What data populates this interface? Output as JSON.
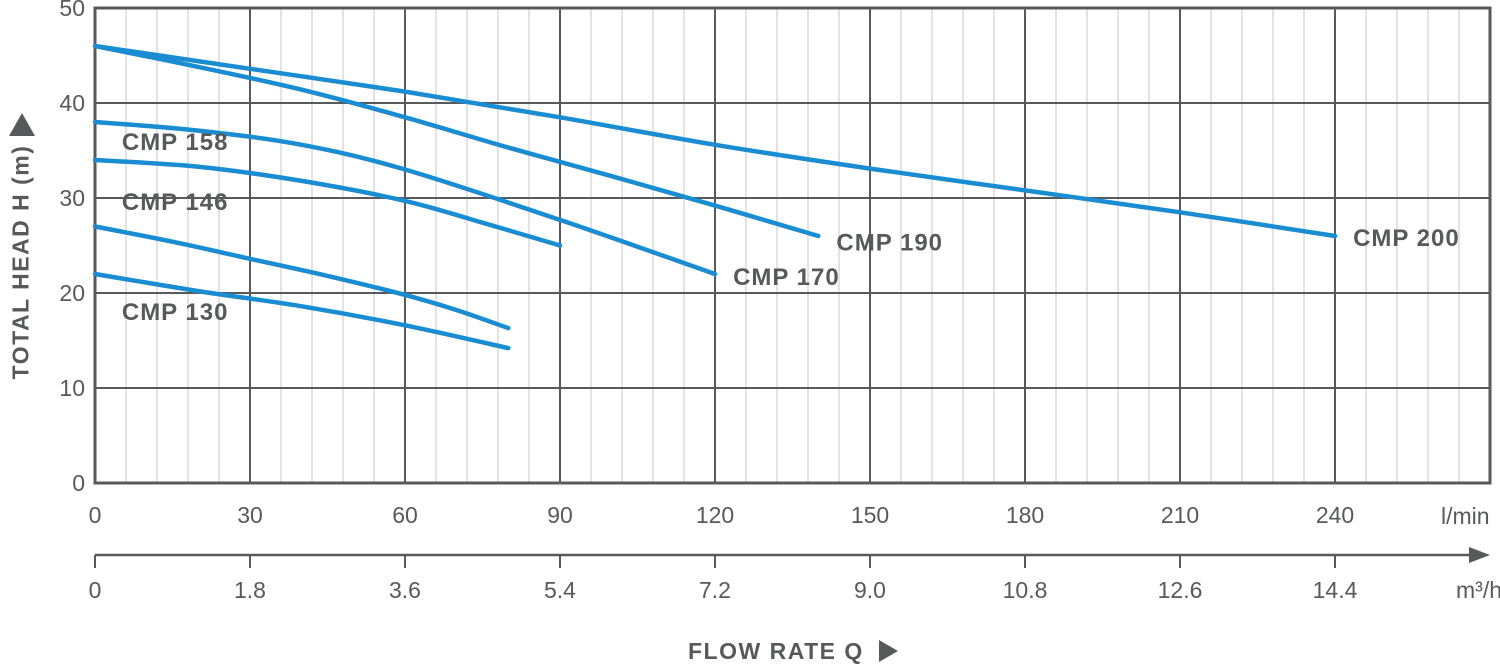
{
  "colors": {
    "curve": "#1a8cd2",
    "grid_major": "#58595b",
    "grid_minor": "#d9dadb",
    "border": "#58595b",
    "text": "#58595b"
  },
  "y_axis": {
    "title": "TOTAL HEAD H (m)",
    "ticks": [
      0,
      10,
      20,
      30,
      40,
      50
    ]
  },
  "x_axis": {
    "title": "FLOW RATE Q",
    "unit_primary": "l/min",
    "unit_secondary": "m³/h",
    "ticks_primary": [
      0,
      30,
      60,
      90,
      120,
      150,
      180,
      210,
      240
    ],
    "ticks_secondary": [
      "0",
      "1.8",
      "3.6",
      "5.4",
      "7.2",
      "9.0",
      "10.8",
      "12.6",
      "14.4"
    ]
  },
  "chart_data": {
    "type": "line",
    "xlabel": "FLOW RATE Q",
    "ylabel": "TOTAL HEAD H (m)",
    "x_unit_primary": "l/min",
    "x_unit_secondary": "m³/h",
    "xlim": [
      0,
      270
    ],
    "ylim": [
      0,
      50
    ],
    "x_major_step": 30,
    "x_minor_step": 6,
    "y_major_step": 10,
    "grid": "on",
    "legend_position": "labels-on-curves",
    "series": [
      {
        "name": "CMP 130",
        "points": [
          [
            0,
            22
          ],
          [
            20,
            20.2
          ],
          [
            40,
            18.6
          ],
          [
            60,
            16.6
          ],
          [
            80,
            14.2
          ]
        ],
        "label_at": {
          "q": 5.2,
          "h": 18.1,
          "anchor": "start"
        }
      },
      {
        "name": "CMP 146",
        "points": [
          [
            0,
            27
          ],
          [
            15,
            25.4
          ],
          [
            30,
            23.6
          ],
          [
            45,
            21.8
          ],
          [
            60,
            19.8
          ],
          [
            70,
            18.2
          ],
          [
            80,
            16.3
          ]
        ],
        "label_at": {
          "q": 5.2,
          "h": 29.7,
          "anchor": "start"
        }
      },
      {
        "name": "CMP 158",
        "points": [
          [
            0,
            34
          ],
          [
            20,
            33.3
          ],
          [
            40,
            31.8
          ],
          [
            60,
            29.7
          ],
          [
            75,
            27.4
          ],
          [
            90,
            25
          ]
        ],
        "label_at": {
          "q": 5.2,
          "h": 36.0,
          "anchor": "start"
        }
      },
      {
        "name": "CMP 170",
        "points": [
          [
            0,
            38
          ],
          [
            20,
            37.1
          ],
          [
            40,
            35.6
          ],
          [
            60,
            33.0
          ],
          [
            90,
            27.7
          ],
          [
            120,
            22
          ]
        ],
        "label_at": {
          "q": 123.5,
          "h": 21.8,
          "anchor": "start"
        }
      },
      {
        "name": "CMP 190",
        "points": [
          [
            0,
            46
          ],
          [
            20,
            43.8
          ],
          [
            40,
            41.4
          ],
          [
            60,
            38.5
          ],
          [
            80,
            35.3
          ],
          [
            100,
            32.3
          ],
          [
            120,
            29.2
          ],
          [
            140,
            26
          ]
        ],
        "label_at": {
          "q": 143.5,
          "h": 25.4,
          "anchor": "start"
        }
      },
      {
        "name": "CMP 200",
        "points": [
          [
            0,
            46
          ],
          [
            30,
            43.6
          ],
          [
            60,
            41.2
          ],
          [
            90,
            38.5
          ],
          [
            120,
            35.6
          ],
          [
            150,
            33.1
          ],
          [
            180,
            30.8
          ],
          [
            210,
            28.5
          ],
          [
            240,
            26
          ]
        ],
        "label_at": {
          "q": 243.5,
          "h": 25.9,
          "anchor": "start"
        }
      }
    ]
  }
}
